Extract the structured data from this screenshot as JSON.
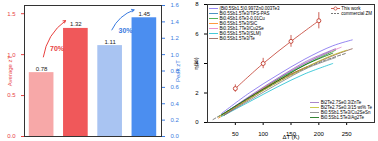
{
  "chart_data": [
    {
      "type": "bar",
      "categories": [
        null,
        null,
        null,
        null
      ],
      "ylabel": "Average zT",
      "y2label": "Peak zT",
      "ylim": [
        0,
        1.6
      ],
      "yticks": [
        {
          "value": 0,
          "label": "0.0"
        },
        0.5,
        {
          "value": 1,
          "label": "1.0"
        },
        1.5
      ],
      "y2lim": [
        0,
        1.6
      ],
      "y2ticks": [
        {
          "value": 0,
          "label": "0.0"
        },
        0.2,
        0.4,
        0.6,
        0.8,
        {
          "value": 1,
          "label": "1.0"
        },
        1.2,
        1.4,
        1.6
      ],
      "data_labels": true,
      "series": [
        {
          "name": "Average zT",
          "color": "#e8413f",
          "colors": [
            "#f7a8a8",
            "#f0585a",
            null,
            null
          ],
          "values": [
            0.78,
            1.32,
            null,
            null
          ]
        },
        {
          "name": "Peak zT",
          "axis": "y2",
          "color": "#3a7be0",
          "colors": [
            null,
            null,
            "#a9c4f2",
            "#4b8ef0"
          ],
          "values": [
            null,
            null,
            1.11,
            1.45
          ]
        }
      ],
      "annotations": [
        {
          "text": "70%",
          "series": "Average zT"
        },
        {
          "text": "30%",
          "series": "Peak zT"
        }
      ]
    },
    {
      "type": "line",
      "xlabel": "ΔT (K)",
      "ylabel": "η(%)",
      "xlim": [
        0,
        300
      ],
      "xticks": [
        50,
        100,
        150,
        200,
        250
      ],
      "ylim": [
        0,
        8
      ],
      "yticks": [
        0,
        2,
        4,
        6,
        8
      ],
      "series": [
        {
          "name": "(Bi0.5Sb1.5)0.997Zn0.003Te3",
          "color": "#7b68ee",
          "line_style": "solid",
          "legend": "top-left",
          "x": [
            25,
            75,
            125,
            175,
            225,
            260
          ],
          "values": [
            0.6,
            2.0,
            3.2,
            4.3,
            5.2,
            5.6
          ]
        },
        {
          "name": "Bi0.5Sb1.5Te3/TiFS-PAS",
          "color": "#1f77b4",
          "line_style": "solid",
          "legend": "top-left",
          "x": [
            20,
            70,
            120,
            170,
            220
          ],
          "values": [
            0.4,
            1.6,
            2.8,
            3.9,
            4.8
          ]
        },
        {
          "name": "Bi0.4Sb1.6Te3-0.01Cu",
          "color": "#2ca02c",
          "line_style": "solid",
          "legend": "top-left",
          "x": [
            30,
            80,
            130,
            180,
            230
          ],
          "values": [
            0.5,
            1.8,
            3.0,
            4.0,
            4.9
          ]
        },
        {
          "name": "Bi0.5Sb1.5Te3/SiC",
          "color": "#ff7f0e",
          "line_style": "solid",
          "legend": "top-left",
          "x": [
            20,
            60,
            100,
            140,
            180
          ],
          "values": [
            0.3,
            1.3,
            2.3,
            3.1,
            3.8
          ]
        },
        {
          "name": "Bi0.3Sb1.7Te3/Cu2Se",
          "color": "#e377c2",
          "line_style": "solid",
          "legend": "top-left",
          "x": [
            40,
            90,
            140,
            190,
            240
          ],
          "values": [
            0.8,
            2.1,
            3.3,
            4.3,
            5.1
          ]
        },
        {
          "name": "Bi0.5Sb1.5Te3(SLM)",
          "color": "#17becf",
          "line_style": "solid",
          "legend": "top-left",
          "x": [
            25,
            75,
            125,
            175,
            225
          ],
          "values": [
            0.4,
            1.4,
            2.4,
            3.3,
            4.0
          ]
        },
        {
          "name": "Bi0.5Sb1.5Te3/Te",
          "color": "#8c564b",
          "line_style": "solid",
          "legend": "top-left",
          "x": [
            30,
            80,
            130,
            180,
            230,
            260
          ],
          "values": [
            0.5,
            1.7,
            2.9,
            3.8,
            4.6,
            5.0
          ]
        },
        {
          "name": "This work",
          "color": "#c0392b",
          "line_style": "solid",
          "marker": "circle",
          "legend": "top-right",
          "x": [
            50,
            100,
            150,
            200
          ],
          "values": [
            2.3,
            4.0,
            5.5,
            6.9
          ],
          "errors": [
            0.25,
            0.35,
            0.4,
            0.55
          ]
        },
        {
          "name": "commercial ZM",
          "color": "#555555",
          "line_style": "dashed",
          "legend": "top-right",
          "x": [
            10,
            60,
            110,
            160,
            210,
            250
          ],
          "values": [
            0.2,
            1.3,
            2.4,
            3.4,
            4.2,
            4.7
          ]
        },
        {
          "name": "Bi2Te2.7Se0.3/ZnTe",
          "color": "#9467bd",
          "line_style": "solid",
          "legend": "bottom-right",
          "x": [
            30,
            80,
            130,
            180,
            230
          ],
          "values": [
            0.6,
            1.9,
            3.1,
            4.2,
            5.0
          ]
        },
        {
          "name": "Bi2Te2.7Se0.3/15 wt% Te",
          "color": "#bcbd22",
          "line_style": "solid",
          "legend": "bottom-right",
          "x": [
            20,
            70,
            120,
            170,
            220,
            250
          ],
          "values": [
            0.4,
            1.5,
            2.6,
            3.6,
            4.5,
            4.9
          ]
        },
        {
          "name": "Bi0.5Sb1.5Te3/Cu2SeSn",
          "color": "#7f7f7f",
          "line_style": "solid",
          "legend": "bottom-right",
          "x": [
            30,
            80,
            130,
            180,
            230
          ],
          "values": [
            0.5,
            1.6,
            2.7,
            3.7,
            4.4
          ]
        },
        {
          "name": "Bi0.5Sb1.5Te3/Ag2Te",
          "color": "#006400",
          "line_style": "solid",
          "legend": "bottom-right",
          "x": [
            25,
            75,
            125,
            175,
            225
          ],
          "values": [
            0.5,
            1.7,
            2.8,
            3.9,
            4.7
          ]
        }
      ]
    }
  ]
}
